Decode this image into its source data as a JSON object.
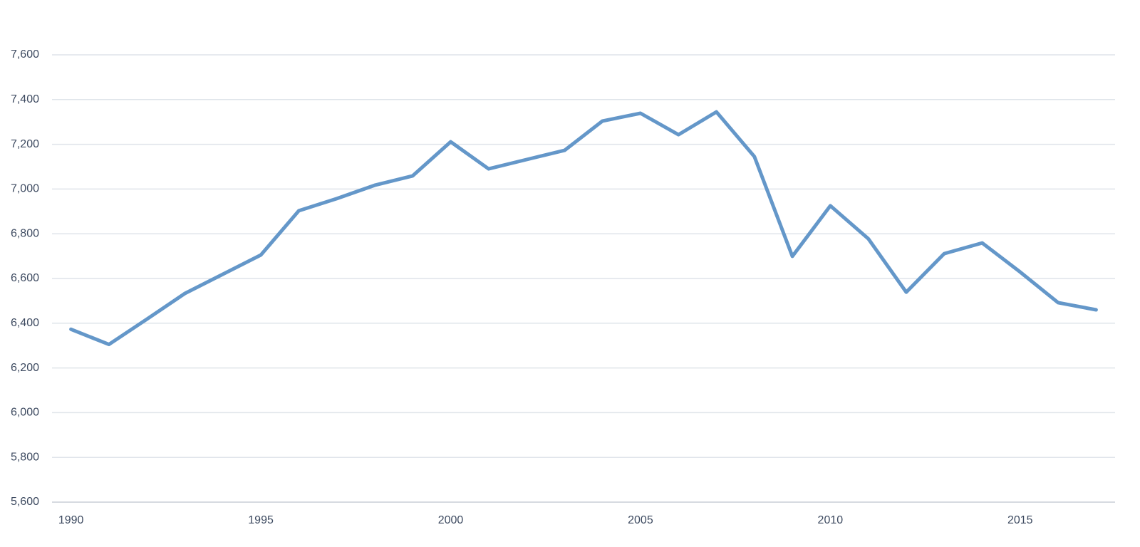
{
  "chart_data": {
    "type": "line",
    "categories": [
      "1990",
      null,
      null,
      null,
      null,
      "1995",
      null,
      null,
      null,
      null,
      "2000",
      null,
      null,
      null,
      null,
      "2005",
      null,
      null,
      null,
      null,
      "2010",
      null,
      null,
      null,
      null,
      "2015",
      null,
      null
    ],
    "values": [
      6373,
      6305,
      6418,
      6533,
      6619,
      6705,
      6903,
      6957,
      7017,
      7059,
      7211,
      7090,
      7132,
      7173,
      7304,
      7339,
      7243,
      7345,
      7145,
      6699,
      6925,
      6778,
      6539,
      6711,
      6759,
      6629,
      6492,
      6460
    ],
    "color": "#6497c9",
    "ylim": [
      5600,
      7600
    ],
    "yticks": [
      {
        "value": 5600,
        "label": "5,600"
      },
      {
        "value": 5800,
        "label": "5,800"
      },
      {
        "value": 6000,
        "label": "6,000"
      },
      {
        "value": 6200,
        "label": "6,200"
      },
      {
        "value": 6400,
        "label": "6,400"
      },
      {
        "value": 6600,
        "label": "6,600"
      },
      {
        "value": 6800,
        "label": "6,800"
      },
      {
        "value": 7000,
        "label": "7,000"
      },
      {
        "value": 7200,
        "label": "7,200"
      },
      {
        "value": 7400,
        "label": "7,400"
      },
      {
        "value": 7600,
        "label": "7,600"
      }
    ],
    "grid": true
  }
}
